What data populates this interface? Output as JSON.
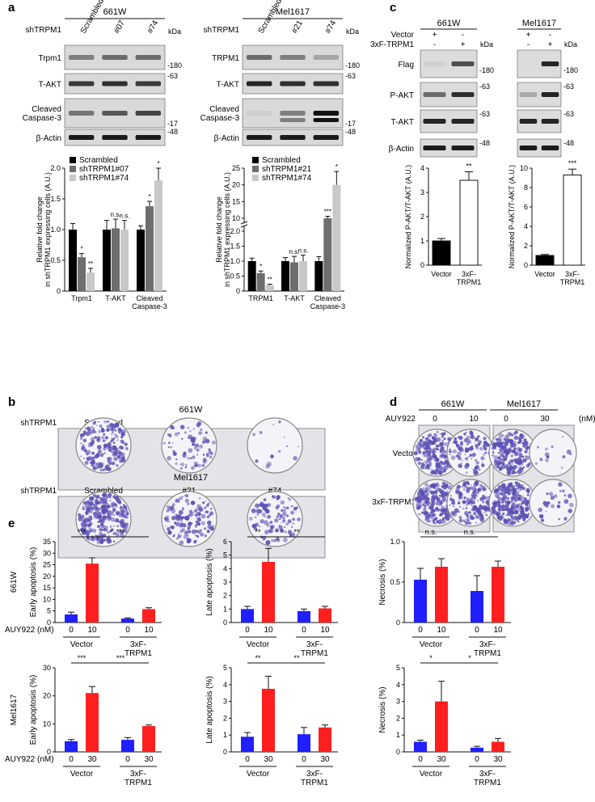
{
  "panels": {
    "a": {
      "label": "a",
      "blots": [
        {
          "cell": "661W",
          "group_label": "shTRPM1",
          "lanes": [
            "Scrambled",
            "#07",
            "#74"
          ],
          "kda_label": "kDa",
          "rows": [
            {
              "name": "Trpm1",
              "marker": "180"
            },
            {
              "name": "T-AKT",
              "marker": "63"
            },
            {
              "name": "Cleaved\nCaspase-3",
              "marker": "17"
            },
            {
              "name": "β-Actin",
              "marker": "48"
            }
          ]
        },
        {
          "cell": "Mel1617",
          "group_label": "shTRPM1",
          "lanes": [
            "Scrambled",
            "#21",
            "#74"
          ],
          "kda_label": "kDa",
          "rows": [
            {
              "name": "TRPM1",
              "marker": "180"
            },
            {
              "name": "T-AKT",
              "marker": "63"
            },
            {
              "name": "Cleaved\nCaspase-3",
              "marker": "17"
            },
            {
              "name": "β-Actin",
              "marker": "48"
            }
          ]
        }
      ]
    },
    "b": {
      "label": "b",
      "plates": [
        {
          "cell": "661W",
          "group_label": "shTRPM1",
          "lanes": [
            "Scrambled",
            "#07",
            "#74"
          ],
          "density": [
            0.7,
            0.3,
            0.05
          ]
        },
        {
          "cell": "Mel1617",
          "group_label": "shTRPM1",
          "lanes": [
            "Scrambled",
            "#21",
            "#74"
          ],
          "density": [
            0.95,
            0.5,
            0.4
          ]
        }
      ]
    },
    "c": {
      "label": "c",
      "blots": [
        {
          "cell": "661W",
          "marks": {
            "vector": [
              "+",
              "-"
            ],
            "trpm1": [
              "-",
              "+"
            ]
          }
        },
        {
          "cell": "Mel1617",
          "marks": {
            "vector": [
              "+",
              "-"
            ],
            "trpm1": [
              "-",
              "+"
            ]
          }
        }
      ],
      "row_labels": {
        "vector": "Vector",
        "trpm1": "3xF-TRPM1"
      },
      "kda_label": "kDa",
      "rows": [
        {
          "name": "Flag",
          "marker": "180"
        },
        {
          "name": "P-AKT",
          "marker": "63"
        },
        {
          "name": "T-AKT",
          "marker": "63"
        },
        {
          "name": "β-Actin",
          "marker": "48"
        }
      ]
    },
    "d": {
      "label": "d",
      "treatment_label": "AUY922",
      "unit": "(nM)",
      "cells": [
        {
          "name": "661W",
          "doses": [
            "0",
            "10"
          ]
        },
        {
          "name": "Mel1617",
          "doses": [
            "0",
            "30"
          ]
        }
      ],
      "row_labels": [
        "Vector",
        "3xF-TRPM1"
      ],
      "density": [
        [
          0.85,
          0.35,
          0.75,
          0.05
        ],
        [
          0.9,
          0.6,
          0.9,
          0.1
        ]
      ]
    },
    "e": {
      "label": "e",
      "row_labels": [
        "661W",
        "Mel1617"
      ],
      "treatment_label": "AUY922 (nM)"
    }
  },
  "chart_data": [
    {
      "id": "a1",
      "type": "bar",
      "ylabel": "Relative fold change\nin shTRPM1 expressing cells (A.U.)",
      "categories": [
        "Trpm1",
        "T-AKT",
        "Cleaved\nCaspase-3"
      ],
      "series": [
        {
          "name": "Scrambled",
          "color": "#000000",
          "values": [
            1.0,
            1.0,
            1.0
          ],
          "errors": [
            0.1,
            0.15,
            0.06
          ]
        },
        {
          "name": "shTRPM1#07",
          "color": "#6e6e6e",
          "values": [
            0.55,
            1.02,
            1.38
          ],
          "errors": [
            0.06,
            0.15,
            0.08
          ]
        },
        {
          "name": "shTRPM1#74",
          "color": "#c8c8c8",
          "values": [
            0.3,
            1.0,
            1.8
          ],
          "errors": [
            0.07,
            0.15,
            0.2
          ]
        }
      ],
      "sig": [
        [
          "",
          "*",
          "**"
        ],
        [
          "",
          "n.s.",
          "n.s."
        ],
        [
          "",
          "*",
          "*"
        ]
      ],
      "ylim": [
        0,
        2
      ],
      "yticks": [
        "0",
        "0.5",
        "1.0",
        "1.5",
        "2.0"
      ],
      "ytick_values": [
        0,
        0.5,
        1,
        1.5,
        2
      ]
    },
    {
      "id": "a2",
      "type": "bar",
      "broken_axis": true,
      "ylabel": "Relative fold change\nin shTRPM1 expressing cells (A.U.)",
      "categories": [
        "TRPM1",
        "T-AKT",
        "Cleaved\nCaspase-3"
      ],
      "series": [
        {
          "name": "Scrambled",
          "color": "#000000",
          "values": [
            1.0,
            1.0,
            1.0
          ],
          "errors": [
            0.1,
            0.12,
            0.15
          ]
        },
        {
          "name": "shTRPM1#21",
          "color": "#6e6e6e",
          "values": [
            0.6,
            0.96,
            10.0
          ],
          "errors": [
            0.07,
            0.2,
            0.6
          ]
        },
        {
          "name": "shTRPM1#74",
          "color": "#c8c8c8",
          "values": [
            0.2,
            1.0,
            20.0
          ],
          "errors": [
            0.03,
            0.2,
            4.0
          ]
        }
      ],
      "sig": [
        [
          "",
          "*",
          "**"
        ],
        [
          "",
          "n.s.",
          "n.s."
        ],
        [
          "",
          "***",
          "*"
        ]
      ],
      "ylim": [
        0,
        25
      ],
      "yticks": [
        "0",
        "0.5",
        "1.0",
        "1.5",
        "2.0",
        "10",
        "15",
        "20",
        "25"
      ],
      "ytick_values": [
        0,
        0.5,
        1,
        1.5,
        2,
        10,
        15,
        20,
        25
      ]
    },
    {
      "id": "c1",
      "type": "bar",
      "ylabel": "Normalized P-AKT/T-AKT (A.U.)",
      "categories": [
        "Vector",
        "3xF-\nTRPM1"
      ],
      "fills": [
        "#000000",
        "#ffffff"
      ],
      "values": [
        1.0,
        3.5
      ],
      "errors": [
        0.1,
        0.35
      ],
      "sig": [
        "",
        "**"
      ],
      "ylim": [
        0,
        4
      ],
      "yticks": [
        "0",
        "1",
        "2",
        "3",
        "4"
      ]
    },
    {
      "id": "c2",
      "type": "bar",
      "ylabel": "Normalized P-AKT/T-AKT (A.U.)",
      "categories": [
        "Vector",
        "3xF-\nTRPM1"
      ],
      "fills": [
        "#000000",
        "#ffffff"
      ],
      "values": [
        1.0,
        9.3
      ],
      "errors": [
        0.1,
        0.6
      ],
      "sig": [
        "",
        "***"
      ],
      "ylim": [
        0,
        10
      ],
      "yticks": [
        "0",
        "2",
        "4",
        "6",
        "8",
        "10"
      ]
    },
    {
      "id": "e1",
      "type": "bar",
      "ylabel": "Early apoptosis (%)",
      "doses": [
        "0",
        "10",
        "0",
        "10"
      ],
      "groups": [
        "Vector",
        "3xF-\nTRPM1"
      ],
      "fills": [
        "#1f1fff",
        "#ff1f1f",
        "#1f1fff",
        "#ff1f1f"
      ],
      "values": [
        3.5,
        25.5,
        1.7,
        5.8
      ],
      "errors": [
        1.0,
        2.5,
        0.3,
        0.6
      ],
      "brackets": [
        "***",
        "***"
      ],
      "ylim": [
        0,
        35
      ],
      "yticks": [
        "0",
        "5",
        "10",
        "15",
        "20",
        "25",
        "30",
        "35"
      ]
    },
    {
      "id": "e2",
      "type": "bar",
      "ylabel": "Late apoptosis (%)",
      "doses": [
        "0",
        "10",
        "0",
        "10"
      ],
      "groups": [
        "Vector",
        "3xF-\nTRPM1"
      ],
      "fills": [
        "#1f1fff",
        "#ff1f1f",
        "#1f1fff",
        "#ff1f1f"
      ],
      "values": [
        1.0,
        4.5,
        0.85,
        1.05
      ],
      "errors": [
        0.2,
        1.0,
        0.15,
        0.15
      ],
      "brackets": [
        "**",
        "**"
      ],
      "ylim": [
        0,
        6
      ],
      "yticks": [
        "0",
        "1",
        "2",
        "3",
        "4",
        "5",
        "6"
      ]
    },
    {
      "id": "e3",
      "type": "bar",
      "ylabel": "Necrosis (%)",
      "doses": [
        "0",
        "10",
        "0",
        "10"
      ],
      "groups": [
        "Vector",
        "3xF-\nTRPM1"
      ],
      "fills": [
        "#1f1fff",
        "#ff1f1f",
        "#1f1fff",
        "#ff1f1f"
      ],
      "values": [
        0.53,
        0.69,
        0.39,
        0.69
      ],
      "errors": [
        0.14,
        0.1,
        0.19,
        0.07
      ],
      "brackets": [
        "n.s.",
        "n.s."
      ],
      "ylim": [
        0,
        1.0
      ],
      "yticks": [
        "0",
        "0.5",
        "1.0"
      ],
      "ytick_values": [
        0,
        0.5,
        1.0
      ]
    },
    {
      "id": "e4",
      "type": "bar",
      "ylabel": "Early apoptosis (%)",
      "doses": [
        "0",
        "30",
        "0",
        "30"
      ],
      "groups": [
        "Vector",
        "3xF-\nTRPM1"
      ],
      "fills": [
        "#1f1fff",
        "#ff1f1f",
        "#1f1fff",
        "#ff1f1f"
      ],
      "values": [
        3.8,
        21.0,
        4.3,
        9.2
      ],
      "errors": [
        0.6,
        2.3,
        0.8,
        0.4
      ],
      "brackets": [
        "***",
        "***"
      ],
      "ylim": [
        0,
        30
      ],
      "yticks": [
        "0",
        "10",
        "20",
        "30"
      ]
    },
    {
      "id": "e5",
      "type": "bar",
      "ylabel": "Late apoptosis (%)",
      "doses": [
        "0",
        "30",
        "0",
        "30"
      ],
      "groups": [
        "Vector",
        "3xF-\nTRPM1"
      ],
      "fills": [
        "#1f1fff",
        "#ff1f1f",
        "#1f1fff",
        "#ff1f1f"
      ],
      "values": [
        0.9,
        3.75,
        1.05,
        1.45
      ],
      "errors": [
        0.25,
        0.75,
        0.4,
        0.15
      ],
      "brackets": [
        "**",
        "**"
      ],
      "ylim": [
        0,
        5
      ],
      "yticks": [
        "0",
        "1",
        "2",
        "3",
        "4",
        "5"
      ]
    },
    {
      "id": "e6",
      "type": "bar",
      "ylabel": "Necrosis (%)",
      "doses": [
        "0",
        "30",
        "0",
        "30"
      ],
      "groups": [
        "Vector",
        "3xF-\nTRPM1"
      ],
      "fills": [
        "#1f1fff",
        "#ff1f1f",
        "#1f1fff",
        "#ff1f1f"
      ],
      "values": [
        0.6,
        3.0,
        0.25,
        0.6
      ],
      "errors": [
        0.1,
        1.2,
        0.08,
        0.2
      ],
      "brackets": [
        "*",
        "*"
      ],
      "ylim": [
        0,
        5
      ],
      "yticks": [
        "0",
        "1",
        "2",
        "3",
        "4",
        "5"
      ]
    }
  ]
}
